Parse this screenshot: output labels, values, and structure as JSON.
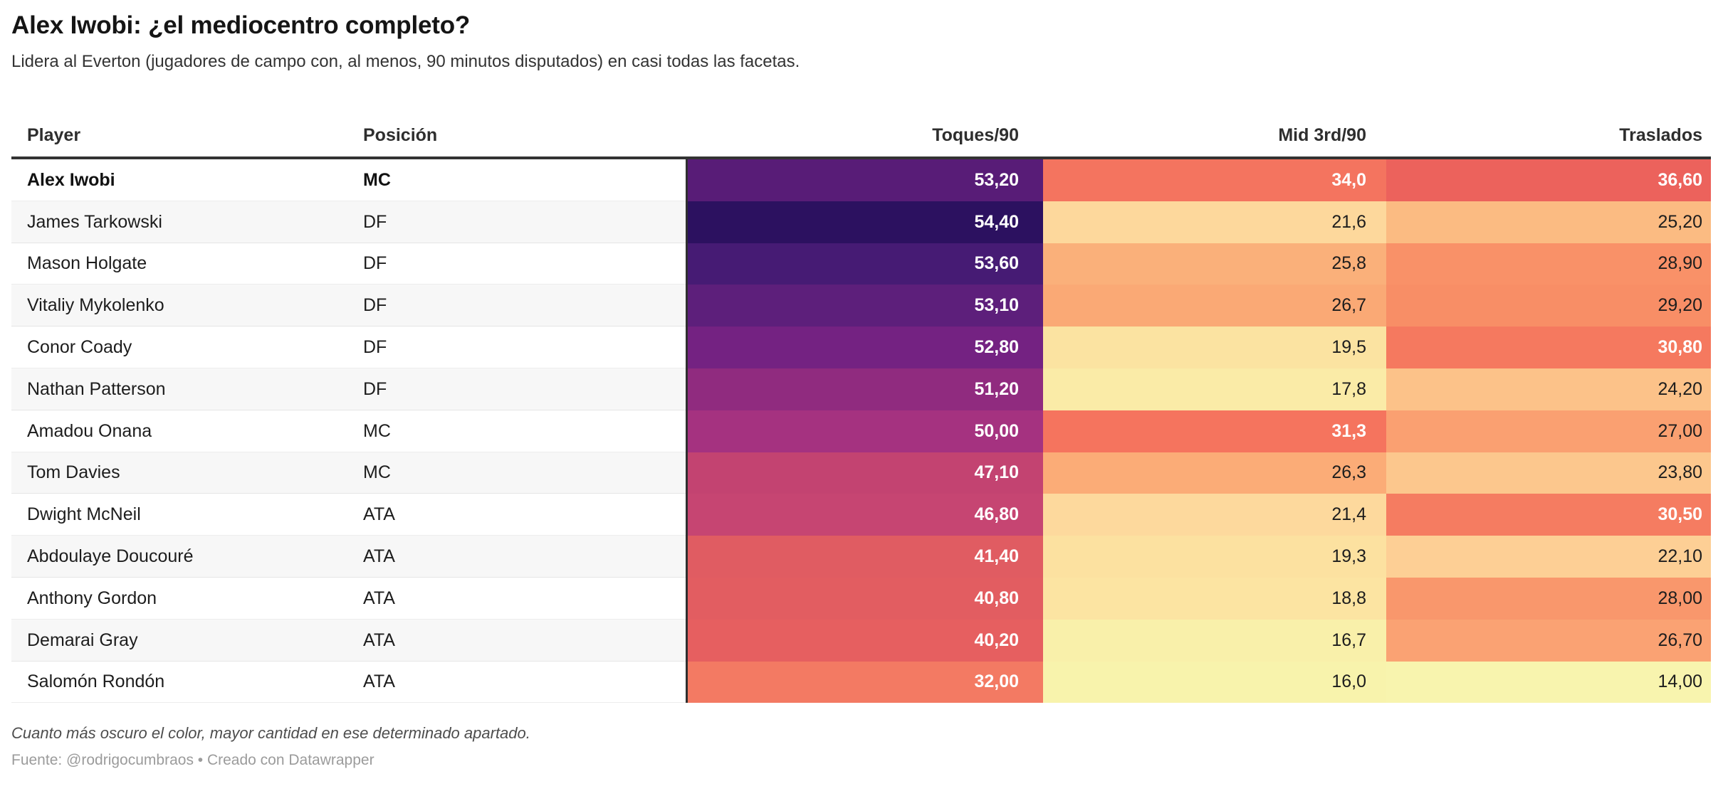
{
  "title": "Alex Iwobi: ¿el mediocentro completo?",
  "subtitle": "Lidera al Everton (jugadores de campo con, al menos, 90 minutos disputados) en casi todas las facetas.",
  "footnote": "Cuanto más oscuro el color, mayor cantidad en ese determinado apartado.",
  "source": "Fuente: @rodrigocumbraos • Creado con Datawrapper",
  "colors": {
    "header_rule": "#333333",
    "row_alt_background": "#f7f7f7",
    "heat_dark_max": "#2c1160",
    "heat_light_min": "#f8f4ae",
    "white_text": "#ffffff",
    "dark_text": "#1d1d1d"
  },
  "chart_data": {
    "type": "table",
    "columns": [
      "Player",
      "Posición",
      "Toques/90",
      "Mid 3rd/90",
      "Traslados"
    ],
    "rows": [
      {
        "player": "Alex Iwobi",
        "position": "MC",
        "bold": true,
        "toques": {
          "value": "53,20",
          "num": 53.2,
          "bg": "#581c77",
          "fg": "#ffffff"
        },
        "mid": {
          "value": "34,0",
          "num": 34.0,
          "bg": "#f4745f",
          "fg": "#ffffff"
        },
        "traslados": {
          "value": "36,60",
          "num": 36.6,
          "bg": "#ec625c",
          "fg": "#ffffff"
        }
      },
      {
        "player": "James Tarkowski",
        "position": "DF",
        "bold": false,
        "toques": {
          "value": "54,40",
          "num": 54.4,
          "bg": "#2c1160",
          "fg": "#ffffff"
        },
        "mid": {
          "value": "21,6",
          "num": 21.6,
          "bg": "#fdd89c",
          "fg": "#1d1d1d"
        },
        "traslados": {
          "value": "25,20",
          "num": 25.2,
          "bg": "#fbbb82",
          "fg": "#1d1d1d"
        }
      },
      {
        "player": "Mason Holgate",
        "position": "DF",
        "bold": false,
        "toques": {
          "value": "53,60",
          "num": 53.6,
          "bg": "#461b74",
          "fg": "#ffffff"
        },
        "mid": {
          "value": "25,8",
          "num": 25.8,
          "bg": "#fab07a",
          "fg": "#1d1d1d"
        },
        "traslados": {
          "value": "28,90",
          "num": 28.9,
          "bg": "#f99168",
          "fg": "#1d1d1d"
        }
      },
      {
        "player": "Vitaliy Mykolenko",
        "position": "DF",
        "bold": false,
        "toques": {
          "value": "53,10",
          "num": 53.1,
          "bg": "#5d1f7b",
          "fg": "#ffffff"
        },
        "mid": {
          "value": "26,7",
          "num": 26.7,
          "bg": "#faa975",
          "fg": "#1d1d1d"
        },
        "traslados": {
          "value": "29,20",
          "num": 29.2,
          "bg": "#f88e66",
          "fg": "#1d1d1d"
        }
      },
      {
        "player": "Conor Coady",
        "position": "DF",
        "bold": false,
        "toques": {
          "value": "52,80",
          "num": 52.8,
          "bg": "#742282",
          "fg": "#ffffff"
        },
        "mid": {
          "value": "19,5",
          "num": 19.5,
          "bg": "#fbe3a1",
          "fg": "#1d1d1d"
        },
        "traslados": {
          "value": "30,80",
          "num": 30.8,
          "bg": "#f5795f",
          "fg": "#ffffff"
        }
      },
      {
        "player": "Nathan Patterson",
        "position": "DF",
        "bold": false,
        "toques": {
          "value": "51,20",
          "num": 51.2,
          "bg": "#902b7f",
          "fg": "#ffffff"
        },
        "mid": {
          "value": "17,8",
          "num": 17.8,
          "bg": "#faeba7",
          "fg": "#1d1d1d"
        },
        "traslados": {
          "value": "24,20",
          "num": 24.2,
          "bg": "#fcc289",
          "fg": "#1d1d1d"
        }
      },
      {
        "player": "Amadou Onana",
        "position": "MC",
        "bold": false,
        "toques": {
          "value": "50,00",
          "num": 50.0,
          "bg": "#a53280",
          "fg": "#ffffff"
        },
        "mid": {
          "value": "31,3",
          "num": 31.3,
          "bg": "#f5745e",
          "fg": "#ffffff"
        },
        "traslados": {
          "value": "27,00",
          "num": 27.0,
          "bg": "#faa071",
          "fg": "#1d1d1d"
        }
      },
      {
        "player": "Tom Davies",
        "position": "MC",
        "bold": false,
        "toques": {
          "value": "47,10",
          "num": 47.1,
          "bg": "#c34371",
          "fg": "#ffffff"
        },
        "mid": {
          "value": "26,3",
          "num": 26.3,
          "bg": "#fbac77",
          "fg": "#1d1d1d"
        },
        "traslados": {
          "value": "23,80",
          "num": 23.8,
          "bg": "#fcc78d",
          "fg": "#1d1d1d"
        }
      },
      {
        "player": "Dwight McNeil",
        "position": "ATA",
        "bold": false,
        "toques": {
          "value": "46,80",
          "num": 46.8,
          "bg": "#c64572",
          "fg": "#ffffff"
        },
        "mid": {
          "value": "21,4",
          "num": 21.4,
          "bg": "#fdd99d",
          "fg": "#1d1d1d"
        },
        "traslados": {
          "value": "30,50",
          "num": 30.5,
          "bg": "#f57c61",
          "fg": "#ffffff"
        }
      },
      {
        "player": "Abdoulaye Doucouré",
        "position": "ATA",
        "bold": false,
        "toques": {
          "value": "41,40",
          "num": 41.4,
          "bg": "#e05c62",
          "fg": "#ffffff"
        },
        "mid": {
          "value": "19,3",
          "num": 19.3,
          "bg": "#fce1a0",
          "fg": "#1d1d1d"
        },
        "traslados": {
          "value": "22,10",
          "num": 22.1,
          "bg": "#fdcf95",
          "fg": "#1d1d1d"
        }
      },
      {
        "player": "Anthony Gordon",
        "position": "ATA",
        "bold": false,
        "toques": {
          "value": "40,80",
          "num": 40.8,
          "bg": "#e25d61",
          "fg": "#ffffff"
        },
        "mid": {
          "value": "18,8",
          "num": 18.8,
          "bg": "#fce4a2",
          "fg": "#1d1d1d"
        },
        "traslados": {
          "value": "28,00",
          "num": 28.0,
          "bg": "#f9976c",
          "fg": "#1d1d1d"
        }
      },
      {
        "player": "Demarai Gray",
        "position": "ATA",
        "bold": false,
        "toques": {
          "value": "40,20",
          "num": 40.2,
          "bg": "#e65f60",
          "fg": "#ffffff"
        },
        "mid": {
          "value": "16,7",
          "num": 16.7,
          "bg": "#f9f0aa",
          "fg": "#1d1d1d"
        },
        "traslados": {
          "value": "26,70",
          "num": 26.7,
          "bg": "#faa273",
          "fg": "#1d1d1d"
        }
      },
      {
        "player": "Salomón Rondón",
        "position": "ATA",
        "bold": false,
        "toques": {
          "value": "32,00",
          "num": 32.0,
          "bg": "#f37a63",
          "fg": "#ffffff"
        },
        "mid": {
          "value": "16,0",
          "num": 16.0,
          "bg": "#f8f3ac",
          "fg": "#1d1d1d"
        },
        "traslados": {
          "value": "14,00",
          "num": 14.0,
          "bg": "#f8f4ae",
          "fg": "#1d1d1d"
        }
      }
    ]
  }
}
